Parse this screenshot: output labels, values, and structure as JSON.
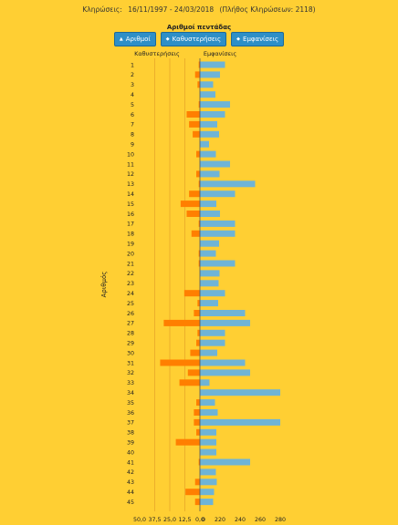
{
  "header": {
    "info_label": "Κληρώσεις:",
    "date_range": "16/11/1997 - 24/03/2018",
    "draws_note": "(Πλήθος Κληρώσεων: 2118)"
  },
  "chart_heading": "Αριθμοί πεντάδας",
  "buttons": [
    {
      "label": "Αριθμοί",
      "arrow": "▲"
    },
    {
      "label": "Καθυστερήσεις",
      "arrow": "◆"
    },
    {
      "label": "Εμφανίσεις",
      "arrow": "◆"
    }
  ],
  "colors": {
    "background": "#ffcf33",
    "delays": "#ff7f00",
    "appearances": "#6fb4d6",
    "button": "#2e8fc7"
  },
  "chart_data": {
    "type": "bar",
    "orientation": "horizontal-diverging",
    "ylabel": "Αριθμός",
    "categories": [
      "1",
      "2",
      "3",
      "4",
      "5",
      "6",
      "7",
      "8",
      "9",
      "10",
      "11",
      "12",
      "13",
      "14",
      "15",
      "16",
      "17",
      "18",
      "19",
      "20",
      "21",
      "22",
      "23",
      "24",
      "25",
      "26",
      "27",
      "28",
      "29",
      "30",
      "31",
      "32",
      "33",
      "34",
      "35",
      "36",
      "37",
      "38",
      "39",
      "40",
      "41",
      "42",
      "43",
      "44",
      "45"
    ],
    "left_series": {
      "name": "Καθυστερήσεις",
      "values": [
        1,
        4,
        2,
        0,
        1,
        11,
        9,
        6,
        0,
        3,
        0,
        3,
        1,
        9,
        16,
        11,
        1,
        7,
        0,
        1,
        1,
        0,
        0,
        13,
        2,
        5,
        30,
        2,
        3,
        8,
        33,
        10,
        17,
        0,
        3,
        5,
        5,
        3,
        20,
        0,
        1,
        0,
        4,
        12,
        4
      ],
      "axis_min": 0,
      "axis_max": 50,
      "ticks": [
        "50,0",
        "37,5",
        "25,0",
        "12,5",
        "0,0"
      ],
      "gridlines": [
        12.5,
        25,
        37.5
      ]
    },
    "right_series": {
      "name": "Εμφανίσεις",
      "values": [
        225,
        220,
        145,
        170,
        230,
        225,
        190,
        210,
        100,
        175,
        230,
        215,
        255,
        235,
        180,
        220,
        235,
        235,
        210,
        175,
        235,
        215,
        205,
        225,
        200,
        245,
        250,
        225,
        225,
        190,
        245,
        250,
        105,
        290,
        165,
        195,
        290,
        180,
        180,
        180,
        250,
        175,
        185,
        155,
        145
      ],
      "axis_min": 0,
      "axis_max": 280,
      "ticks": [
        "0",
        "220",
        "240",
        "260",
        "280"
      ]
    }
  }
}
